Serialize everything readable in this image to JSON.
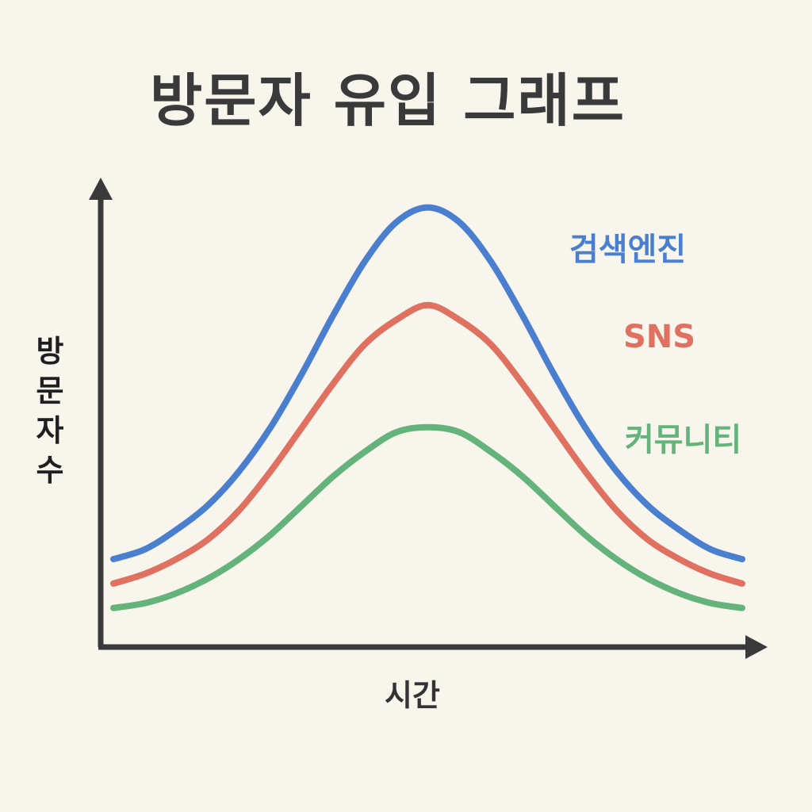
{
  "chart_data": {
    "type": "line",
    "title": "방문자 유입 그래프",
    "xlabel": "시간",
    "ylabel": "방문자 수",
    "x": [
      0,
      1,
      2,
      3,
      4,
      5,
      6,
      7,
      8,
      9,
      10,
      11,
      12,
      13,
      14,
      15,
      16,
      17,
      18,
      19,
      20
    ],
    "xlim": [
      0,
      20
    ],
    "ylim": [
      0,
      100
    ],
    "grid": false,
    "legend": "inline-right",
    "series": [
      {
        "name": "검색엔진",
        "color": "#4a7fcf",
        "values": [
          18,
          20,
          24,
          29,
          36,
          45,
          56,
          68,
          79,
          87,
          90,
          87,
          79,
          68,
          56,
          45,
          36,
          29,
          24,
          20,
          18
        ]
      },
      {
        "name": "SNS",
        "color": "#e07060",
        "values": [
          13,
          15,
          18,
          22,
          28,
          36,
          45,
          54,
          62,
          67,
          70,
          67,
          62,
          54,
          45,
          36,
          28,
          22,
          18,
          15,
          13
        ]
      },
      {
        "name": "커뮤니티",
        "color": "#63b37a",
        "values": [
          8,
          9,
          11,
          14,
          18,
          23,
          29,
          35,
          40,
          44,
          45,
          44,
          40,
          35,
          29,
          23,
          18,
          14,
          11,
          9,
          8
        ]
      }
    ]
  }
}
